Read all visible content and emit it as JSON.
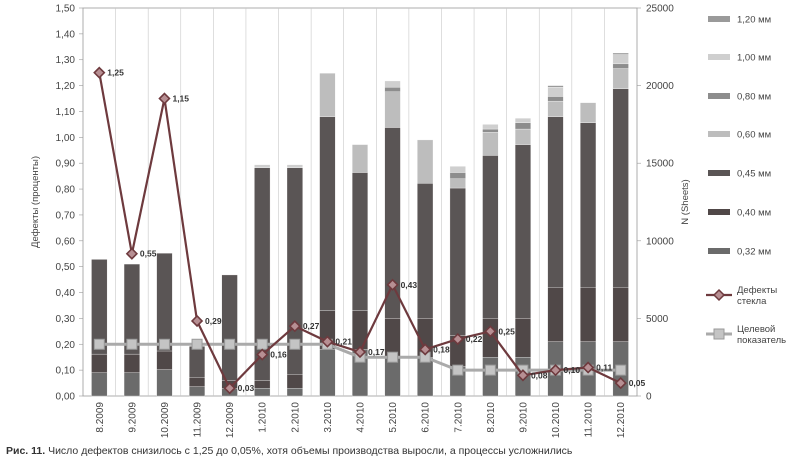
{
  "chart_data": {
    "type": "bar",
    "title": "",
    "ylabel_left": "Дефекты (проценты)",
    "ylabel_right": "N (Sheets)",
    "ylim_left": [
      0,
      1.5
    ],
    "ylim_right": [
      0,
      25000
    ],
    "yticks_left": [
      "0,00",
      "0,10",
      "0,20",
      "0,30",
      "0,40",
      "0,50",
      "0,60",
      "0,70",
      "0,80",
      "0,90",
      "1,00",
      "1,10",
      "1,20",
      "1,30",
      "1,40",
      "1,50"
    ],
    "yticks_right": [
      "0",
      "5000",
      "10000",
      "15000",
      "20000",
      "25000"
    ],
    "grid": true,
    "legend_position": "right",
    "categories": [
      "8.2009",
      "9.2009",
      "10.2009",
      "11.2009",
      "12.2009",
      "1.2010",
      "2.2010",
      "3.2010",
      "4.2010",
      "5.2010",
      "6.2010",
      "7.2010",
      "8.2010",
      "9.2010",
      "10.2010",
      "11.2010",
      "12.2010"
    ],
    "stack_series": [
      {
        "name": "0,32 мм",
        "color": "#6b6b6b",
        "values": [
          1500,
          1500,
          1700,
          600,
          500,
          500,
          500,
          3000,
          3000,
          2500,
          2500,
          1900,
          2500,
          2500,
          3500,
          3500,
          3500
        ]
      },
      {
        "name": "0,40 мм",
        "color": "#504848",
        "values": [
          1200,
          1200,
          1200,
          600,
          500,
          500,
          900,
          2500,
          2500,
          2500,
          2500,
          2000,
          2500,
          2500,
          3500,
          3500,
          3500
        ]
      },
      {
        "name": "0,45 мм",
        "color": "#5a5555",
        "values": [
          6100,
          5800,
          6300,
          2000,
          6800,
          13700,
          13300,
          12500,
          8900,
          12300,
          8700,
          9500,
          10500,
          11200,
          11000,
          10600,
          12800
        ]
      },
      {
        "name": "0,60 мм",
        "color": "#bdbdbd",
        "values": [
          0,
          0,
          0,
          0,
          0,
          0,
          0,
          2800,
          1800,
          2300,
          2800,
          600,
          1500,
          1000,
          1000,
          1300,
          1300
        ]
      },
      {
        "name": "0,80 мм",
        "color": "#8d8d8d",
        "values": [
          0,
          0,
          0,
          0,
          0,
          0,
          0,
          0,
          0,
          300,
          0,
          400,
          200,
          400,
          300,
          0,
          300
        ]
      },
      {
        "name": "1,00 мм",
        "color": "#cfcfcf",
        "values": [
          0,
          0,
          0,
          0,
          0,
          200,
          200,
          0,
          0,
          400,
          0,
          400,
          300,
          300,
          600,
          0,
          600
        ]
      },
      {
        "name": "1,20 мм",
        "color": "#9a9a9a",
        "values": [
          0,
          0,
          0,
          0,
          0,
          0,
          0,
          0,
          0,
          0,
          0,
          0,
          0,
          0,
          100,
          0,
          100
        ]
      }
    ],
    "line_series": [
      {
        "name": "Дефекты стекла",
        "color": "#6e3a3e",
        "values": [
          1.25,
          0.55,
          1.15,
          0.29,
          0.03,
          0.16,
          0.27,
          0.21,
          0.17,
          0.43,
          0.18,
          0.22,
          0.25,
          0.08,
          0.1,
          0.11,
          0.05
        ],
        "labels": [
          "1,25",
          "0,55",
          "1,15",
          "0,29",
          "0,03",
          "0,16",
          "0,27",
          "0,21",
          "0,17",
          "0,43",
          "0,18",
          "0,22",
          "0,25",
          "0,08",
          "0,10",
          "0,11",
          "0,05"
        ]
      },
      {
        "name": "Целевой показатель",
        "color": "#aaaaaa",
        "values": [
          0.2,
          0.2,
          0.2,
          0.2,
          0.2,
          0.2,
          0.2,
          0.2,
          0.15,
          0.15,
          0.15,
          0.1,
          0.1,
          0.1,
          0.1,
          0.1,
          0.1
        ]
      }
    ],
    "legend": [
      {
        "label": "1,20 мм",
        "kind": "box",
        "color": "#9a9a9a"
      },
      {
        "label": "1,00 мм",
        "kind": "box",
        "color": "#cfcfcf"
      },
      {
        "label": "0,80 мм",
        "kind": "box",
        "color": "#8d8d8d"
      },
      {
        "label": "0,60 мм",
        "kind": "box",
        "color": "#bdbdbd"
      },
      {
        "label": "0,45 мм",
        "kind": "box",
        "color": "#5a5555"
      },
      {
        "label": "0,40 мм",
        "kind": "box",
        "color": "#504848"
      },
      {
        "label": "0,32 мм",
        "kind": "box",
        "color": "#6b6b6b"
      },
      {
        "label": "Дефекты\nстекла",
        "kind": "diamond-line",
        "color": "#6e3a3e"
      },
      {
        "label": "Целевой\nпоказатель",
        "kind": "square-line",
        "color": "#aaaaaa"
      }
    ]
  },
  "caption": {
    "figure_label": "Рис. 11.",
    "text": " Число дефектов снизилось с 1,25 до 0,05%, хотя объемы производства выросли, а процессы усложнились"
  }
}
